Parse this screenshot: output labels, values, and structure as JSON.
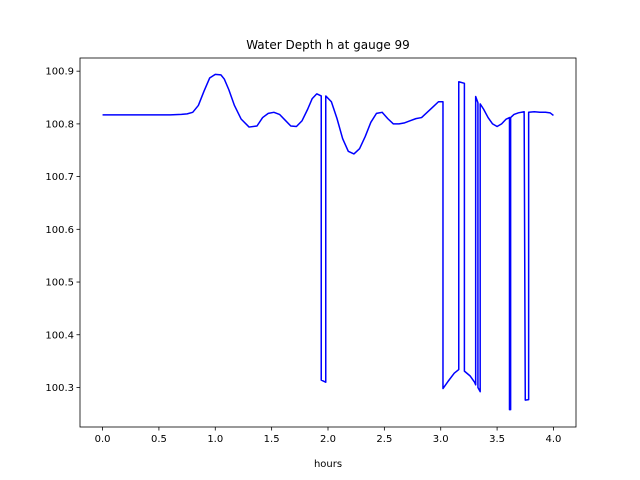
{
  "chart_data": {
    "type": "line",
    "title": "Water Depth h at gauge 99",
    "xlabel": "hours",
    "ylabel": "",
    "xlim": [
      -0.2,
      4.2
    ],
    "ylim": [
      100.225,
      100.925
    ],
    "xticks": [
      0.0,
      0.5,
      1.0,
      1.5,
      2.0,
      2.5,
      3.0,
      3.5,
      4.0
    ],
    "xtick_labels": [
      "0.0",
      "0.5",
      "1.0",
      "1.5",
      "2.0",
      "2.5",
      "3.0",
      "3.5",
      "4.0"
    ],
    "yticks": [
      100.3,
      100.4,
      100.5,
      100.6,
      100.7,
      100.8,
      100.9
    ],
    "ytick_labels": [
      "100.3",
      "100.4",
      "100.5",
      "100.6",
      "100.7",
      "100.8",
      "100.9"
    ],
    "grid": false,
    "legend": "none",
    "series": [
      {
        "color": "#0000ff",
        "x": [
          0.0,
          0.1,
          0.2,
          0.3,
          0.4,
          0.5,
          0.6,
          0.7,
          0.75,
          0.8,
          0.85,
          0.9,
          0.95,
          1.0,
          1.05,
          1.08,
          1.12,
          1.17,
          1.23,
          1.3,
          1.37,
          1.42,
          1.47,
          1.52,
          1.57,
          1.62,
          1.67,
          1.72,
          1.77,
          1.82,
          1.86,
          1.9,
          1.94,
          1.94,
          1.98,
          1.98,
          2.03,
          2.08,
          2.13,
          2.18,
          2.23,
          2.28,
          2.33,
          2.38,
          2.43,
          2.48,
          2.53,
          2.58,
          2.63,
          2.68,
          2.73,
          2.78,
          2.83,
          2.88,
          2.93,
          2.98,
          3.02,
          3.02,
          3.07,
          3.12,
          3.16,
          3.16,
          3.21,
          3.21,
          3.26,
          3.3,
          3.31,
          3.31,
          3.33,
          3.33,
          3.35,
          3.35,
          3.38,
          3.42,
          3.46,
          3.5,
          3.54,
          3.58,
          3.61,
          3.61,
          3.62,
          3.62,
          3.65,
          3.69,
          3.74,
          3.75,
          3.75,
          3.78,
          3.78,
          3.83,
          3.88,
          3.93,
          3.97,
          4.0
        ],
        "y": [
          100.817,
          100.817,
          100.817,
          100.817,
          100.817,
          100.817,
          100.817,
          100.818,
          100.819,
          100.822,
          100.835,
          100.862,
          100.887,
          100.894,
          100.893,
          100.885,
          100.865,
          100.835,
          100.809,
          100.794,
          100.796,
          100.812,
          100.82,
          100.822,
          100.818,
          100.807,
          100.796,
          100.795,
          100.806,
          100.828,
          100.848,
          100.857,
          100.853,
          100.314,
          100.31,
          100.853,
          100.842,
          100.81,
          100.772,
          100.748,
          100.743,
          100.753,
          100.776,
          100.803,
          100.82,
          100.822,
          100.81,
          100.8,
          100.8,
          100.802,
          100.806,
          100.81,
          100.812,
          100.822,
          100.832,
          100.842,
          100.842,
          100.298,
          100.313,
          100.327,
          100.334,
          100.88,
          100.877,
          100.331,
          100.322,
          100.31,
          100.305,
          100.852,
          100.84,
          100.3,
          100.292,
          100.838,
          100.828,
          100.812,
          100.8,
          100.795,
          100.8,
          100.809,
          100.812,
          100.258,
          100.258,
          100.812,
          100.818,
          100.821,
          100.823,
          100.276,
          100.276,
          100.277,
          100.822,
          100.823,
          100.822,
          100.822,
          100.821,
          100.816
        ]
      }
    ]
  }
}
